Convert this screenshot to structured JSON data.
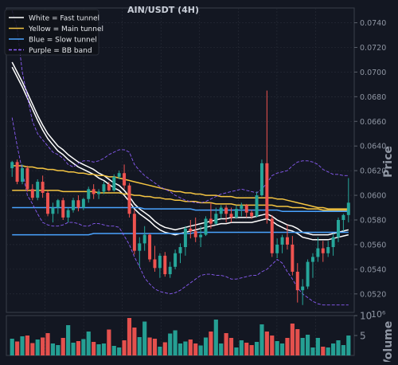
{
  "chart_data": {
    "type": "candlestick",
    "title": "AIN/USDT (4H)",
    "price_axis": {
      "label": "Price",
      "ylim": [
        0.0505,
        0.0752
      ],
      "ticks": [
        "0.0520",
        "0.0540",
        "0.0560",
        "0.0580",
        "0.0600",
        "0.0620",
        "0.0640",
        "0.0660",
        "0.0680",
        "0.0700",
        "0.0720",
        "0.0740"
      ],
      "position": "right",
      "grid": true
    },
    "volume_axis": {
      "label": "Volume",
      "unit": "10⁶",
      "ylim": [
        0,
        10
      ],
      "ticks": [
        "5",
        "10"
      ]
    },
    "legend": {
      "position": "top-left",
      "items": [
        {
          "label": "White = Fast tunnel",
          "color": "#ffffff",
          "dash": false
        },
        {
          "label": "Yellow = Main tunnel",
          "color": "#f5c542",
          "dash": false
        },
        {
          "label": "Blue = Slow tunnel",
          "color": "#4aa3ff",
          "dash": false
        },
        {
          "label": "Purple = BB band",
          "color": "#8a5cf6",
          "dash": true
        }
      ]
    },
    "colors": {
      "background": "#131722",
      "up": "#26a69a",
      "down": "#ef5350",
      "grid": "#2a2e39",
      "axis_text": "#8f96a3"
    },
    "candles": [
      [
        0.0622,
        0.0628,
        0.0615,
        0.0627,
        4.2
      ],
      [
        0.0627,
        0.0629,
        0.0609,
        0.0611,
        3.5
      ],
      [
        0.0611,
        0.0625,
        0.0609,
        0.0622,
        4.8
      ],
      [
        0.0622,
        0.0624,
        0.0603,
        0.0605,
        5.0
      ],
      [
        0.0605,
        0.0609,
        0.0596,
        0.0598,
        3.1
      ],
      [
        0.0598,
        0.0613,
        0.0596,
        0.0611,
        4.0
      ],
      [
        0.0611,
        0.0616,
        0.0598,
        0.0602,
        4.5
      ],
      [
        0.0602,
        0.0604,
        0.0583,
        0.0585,
        5.6
      ],
      [
        0.0585,
        0.0594,
        0.0578,
        0.059,
        3.0
      ],
      [
        0.059,
        0.0597,
        0.0585,
        0.0596,
        2.6
      ],
      [
        0.0596,
        0.0598,
        0.058,
        0.0582,
        4.4
      ],
      [
        0.0582,
        0.059,
        0.0578,
        0.0588,
        7.6
      ],
      [
        0.0588,
        0.0598,
        0.0586,
        0.0596,
        3.2
      ],
      [
        0.0596,
        0.06,
        0.0587,
        0.059,
        3.6
      ],
      [
        0.059,
        0.0598,
        0.0588,
        0.0597,
        4.1
      ],
      [
        0.0597,
        0.0607,
        0.0594,
        0.0605,
        6.0
      ],
      [
        0.0605,
        0.0609,
        0.0597,
        0.0601,
        3.4
      ],
      [
        0.0601,
        0.0605,
        0.0597,
        0.0603,
        2.8
      ],
      [
        0.0603,
        0.0611,
        0.0601,
        0.0609,
        3.0
      ],
      [
        0.0609,
        0.0611,
        0.0603,
        0.0604,
        6.5
      ],
      [
        0.0604,
        0.0617,
        0.0603,
        0.0615,
        2.4
      ],
      [
        0.0615,
        0.062,
        0.0613,
        0.0618,
        2.0
      ],
      [
        0.0618,
        0.0625,
        0.0605,
        0.0608,
        3.8
      ],
      [
        0.0608,
        0.061,
        0.0582,
        0.0585,
        9.4
      ],
      [
        0.0585,
        0.0588,
        0.0552,
        0.0555,
        7.0
      ],
      [
        0.0555,
        0.0566,
        0.0542,
        0.0561,
        4.6
      ],
      [
        0.0561,
        0.0575,
        0.0555,
        0.0568,
        8.5
      ],
      [
        0.0568,
        0.0569,
        0.0546,
        0.0548,
        4.5
      ],
      [
        0.0548,
        0.0559,
        0.0538,
        0.0541,
        4.2
      ],
      [
        0.0541,
        0.0553,
        0.0533,
        0.0551,
        2.2
      ],
      [
        0.0551,
        0.0554,
        0.0534,
        0.0536,
        3.3
      ],
      [
        0.0536,
        0.0546,
        0.0533,
        0.0542,
        5.5
      ],
      [
        0.0542,
        0.0556,
        0.054,
        0.0553,
        6.3
      ],
      [
        0.0553,
        0.0561,
        0.0545,
        0.0558,
        3.0
      ],
      [
        0.0558,
        0.0575,
        0.0551,
        0.0573,
        3.5
      ],
      [
        0.0573,
        0.058,
        0.0565,
        0.0571,
        4.0
      ],
      [
        0.0571,
        0.0582,
        0.0562,
        0.0566,
        3.0
      ],
      [
        0.0566,
        0.0575,
        0.0558,
        0.0568,
        2.5
      ],
      [
        0.0568,
        0.0583,
        0.0567,
        0.0581,
        4.5
      ],
      [
        0.0581,
        0.0594,
        0.0573,
        0.0577,
        6.0
      ],
      [
        0.0577,
        0.059,
        0.0576,
        0.0585,
        9.0
      ],
      [
        0.0585,
        0.0592,
        0.0581,
        0.059,
        3.0
      ],
      [
        0.059,
        0.0592,
        0.0578,
        0.0585,
        5.6
      ],
      [
        0.0585,
        0.059,
        0.0578,
        0.0582,
        4.4
      ],
      [
        0.0582,
        0.0592,
        0.0581,
        0.0589,
        2.0
      ],
      [
        0.0589,
        0.0594,
        0.0583,
        0.0592,
        3.8
      ],
      [
        0.0592,
        0.0593,
        0.0582,
        0.0586,
        3.2
      ],
      [
        0.0586,
        0.0588,
        0.0581,
        0.0583,
        2.6
      ],
      [
        0.0583,
        0.0603,
        0.0582,
        0.06,
        3.4
      ],
      [
        0.06,
        0.0629,
        0.0599,
        0.0626,
        7.8
      ],
      [
        0.0626,
        0.0685,
        0.0577,
        0.0581,
        6.0
      ],
      [
        0.0581,
        0.0584,
        0.055,
        0.0553,
        5.0
      ],
      [
        0.0553,
        0.0565,
        0.0549,
        0.056,
        3.6
      ],
      [
        0.056,
        0.0568,
        0.0553,
        0.0566,
        3.0
      ],
      [
        0.0566,
        0.0576,
        0.0556,
        0.056,
        4.4
      ],
      [
        0.056,
        0.0567,
        0.0535,
        0.0538,
        8.0
      ],
      [
        0.0538,
        0.0545,
        0.0513,
        0.0523,
        6.6
      ],
      [
        0.0523,
        0.0532,
        0.0511,
        0.0526,
        4.4
      ],
      [
        0.0526,
        0.0548,
        0.0524,
        0.0546,
        5.2
      ],
      [
        0.0546,
        0.0553,
        0.0533,
        0.055,
        2.0
      ],
      [
        0.055,
        0.0566,
        0.0546,
        0.0557,
        4.4
      ],
      [
        0.0557,
        0.0563,
        0.0546,
        0.0553,
        2.2
      ],
      [
        0.0553,
        0.0563,
        0.055,
        0.0558,
        2.0
      ],
      [
        0.0558,
        0.0569,
        0.0551,
        0.0566,
        3.0
      ],
      [
        0.0566,
        0.0582,
        0.0562,
        0.058,
        3.8
      ],
      [
        0.058,
        0.0585,
        0.0571,
        0.0584,
        2.6
      ],
      [
        0.0584,
        0.0614,
        0.0578,
        0.0594,
        5.0
      ]
    ],
    "series": [
      {
        "name": "White = Fast tunnel",
        "color": "#ffffff",
        "lines": [
          [
            0.0708,
            0.07,
            0.0692,
            0.0683,
            0.0674,
            0.0665,
            0.0657,
            0.065,
            0.0645,
            0.064,
            0.0637,
            0.0633,
            0.063,
            0.0627,
            0.0625,
            0.0623,
            0.0621,
            0.0618,
            0.0616,
            0.0613,
            0.061,
            0.0608,
            0.0604,
            0.0599,
            0.0593,
            0.0589,
            0.0586,
            0.0583,
            0.0579,
            0.0576,
            0.0574,
            0.0573,
            0.0572,
            0.0573,
            0.0574,
            0.0575,
            0.0576,
            0.0577,
            0.0578,
            0.0579,
            0.058,
            0.0581,
            0.0581,
            0.0582,
            0.0582,
            0.0582,
            0.0582,
            0.0582,
            0.0583,
            0.0584,
            0.0585,
            0.0583,
            0.058,
            0.0578,
            0.0576,
            0.0575,
            0.0573,
            0.057,
            0.0569,
            0.0568,
            0.0568,
            0.0568,
            0.0568,
            0.0569,
            0.057,
            0.0571,
            0.0572
          ],
          [
            0.0704,
            0.0696,
            0.0688,
            0.0679,
            0.067,
            0.0661,
            0.0653,
            0.0646,
            0.0641,
            0.0636,
            0.0633,
            0.0629,
            0.0626,
            0.0623,
            0.0621,
            0.0619,
            0.0617,
            0.0614,
            0.0612,
            0.0609,
            0.0606,
            0.0604,
            0.06,
            0.0595,
            0.0589,
            0.0585,
            0.0582,
            0.0579,
            0.0575,
            0.0572,
            0.057,
            0.0569,
            0.0568,
            0.0569,
            0.057,
            0.0571,
            0.0572,
            0.0573,
            0.0574,
            0.0575,
            0.0576,
            0.0577,
            0.0577,
            0.0578,
            0.0578,
            0.0578,
            0.0578,
            0.0578,
            0.0579,
            0.058,
            0.0581,
            0.0579,
            0.0576,
            0.0574,
            0.0572,
            0.0571,
            0.0569,
            0.0566,
            0.0565,
            0.0564,
            0.0564,
            0.0564,
            0.0564,
            0.0565,
            0.0566,
            0.0567,
            0.0568
          ]
        ]
      },
      {
        "name": "Yellow = Main tunnel",
        "color": "#f5c542",
        "lines": [
          [
            0.0624,
            0.0624,
            0.0624,
            0.0623,
            0.0623,
            0.0622,
            0.0622,
            0.0621,
            0.0621,
            0.062,
            0.062,
            0.0619,
            0.0619,
            0.0618,
            0.0618,
            0.0617,
            0.0617,
            0.0616,
            0.0616,
            0.0615,
            0.0615,
            0.0614,
            0.0613,
            0.0612,
            0.0611,
            0.061,
            0.0609,
            0.0608,
            0.0607,
            0.0606,
            0.0605,
            0.0604,
            0.0603,
            0.0603,
            0.0602,
            0.0602,
            0.0601,
            0.0601,
            0.06,
            0.06,
            0.06,
            0.0599,
            0.0599,
            0.0599,
            0.0598,
            0.0598,
            0.0598,
            0.0598,
            0.0598,
            0.0598,
            0.0598,
            0.0598,
            0.0597,
            0.0597,
            0.0596,
            0.0595,
            0.0594,
            0.0593,
            0.0592,
            0.0591,
            0.059,
            0.059,
            0.0589,
            0.0589,
            0.0589,
            0.0589,
            0.0589
          ],
          [
            0.0604,
            0.0604,
            0.0604,
            0.0604,
            0.0604,
            0.0604,
            0.0604,
            0.0604,
            0.0604,
            0.0604,
            0.0603,
            0.0603,
            0.0603,
            0.0603,
            0.0603,
            0.0603,
            0.0603,
            0.0602,
            0.0602,
            0.0602,
            0.0602,
            0.0602,
            0.0601,
            0.0601,
            0.06,
            0.06,
            0.0599,
            0.0599,
            0.0598,
            0.0598,
            0.0597,
            0.0597,
            0.0596,
            0.0596,
            0.0595,
            0.0595,
            0.0595,
            0.0594,
            0.0594,
            0.0594,
            0.0593,
            0.0593,
            0.0593,
            0.0593,
            0.0592,
            0.0592,
            0.0592,
            0.0592,
            0.0592,
            0.0592,
            0.0592,
            0.0592,
            0.0591,
            0.0591,
            0.0591,
            0.059,
            0.059,
            0.059,
            0.0589,
            0.0589,
            0.0589,
            0.0588,
            0.0588,
            0.0588,
            0.0588,
            0.0588,
            0.0588
          ]
        ]
      },
      {
        "name": "Blue = Slow tunnel",
        "color": "#4aa3ff",
        "lines": [
          [
            0.059,
            0.059,
            0.059,
            0.059,
            0.059,
            0.059,
            0.059,
            0.059,
            0.059,
            0.059,
            0.059,
            0.059,
            0.059,
            0.059,
            0.059,
            0.059,
            0.059,
            0.059,
            0.059,
            0.059,
            0.059,
            0.059,
            0.059,
            0.059,
            0.059,
            0.059,
            0.0589,
            0.0589,
            0.0589,
            0.0589,
            0.0589,
            0.0589,
            0.0589,
            0.0589,
            0.0589,
            0.0589,
            0.0588,
            0.0588,
            0.0588,
            0.0588,
            0.0588,
            0.0588,
            0.0588,
            0.0588,
            0.0588,
            0.0588,
            0.0588,
            0.0588,
            0.0588,
            0.0588,
            0.0588,
            0.0588,
            0.0588,
            0.0587,
            0.0587,
            0.0587,
            0.0587,
            0.0587,
            0.0587,
            0.0587,
            0.0587,
            0.0587,
            0.0587,
            0.0587,
            0.0587,
            0.0587,
            0.0587
          ],
          [
            0.0568,
            0.0568,
            0.0568,
            0.0568,
            0.0568,
            0.0568,
            0.0568,
            0.0568,
            0.0568,
            0.0568,
            0.0568,
            0.0568,
            0.0568,
            0.0568,
            0.0568,
            0.0568,
            0.0569,
            0.0569,
            0.0569,
            0.0569,
            0.0569,
            0.0569,
            0.0569,
            0.0569,
            0.0569,
            0.0569,
            0.0569,
            0.0569,
            0.0569,
            0.0569,
            0.0569,
            0.0569,
            0.0569,
            0.0569,
            0.0569,
            0.0569,
            0.057,
            0.057,
            0.057,
            0.057,
            0.057,
            0.057,
            0.057,
            0.057,
            0.057,
            0.057,
            0.057,
            0.057,
            0.057,
            0.057,
            0.057,
            0.057,
            0.057,
            0.057,
            0.057,
            0.057,
            0.057,
            0.057,
            0.057,
            0.057,
            0.057,
            0.057,
            0.057,
            0.057,
            0.057,
            0.057,
            0.057
          ]
        ]
      },
      {
        "name": "Purple = BB band",
        "color": "#8a5cf6",
        "dash": true,
        "lines": [
          [
            0.075,
            0.0735,
            0.07,
            0.068,
            0.066,
            0.065,
            0.0645,
            0.064,
            0.0635,
            0.0633,
            0.063,
            0.0625,
            0.0623,
            0.0626,
            0.0628,
            0.0628,
            0.0627,
            0.0628,
            0.063,
            0.0633,
            0.0635,
            0.0637,
            0.0637,
            0.0635,
            0.0625,
            0.062,
            0.0616,
            0.0613,
            0.061,
            0.0607,
            0.0605,
            0.0603,
            0.06,
            0.0598,
            0.0596,
            0.0595,
            0.0594,
            0.0594,
            0.0595,
            0.0597,
            0.0599,
            0.0601,
            0.0602,
            0.0603,
            0.0604,
            0.0605,
            0.0604,
            0.0603,
            0.0602,
            0.0605,
            0.061,
            0.0616,
            0.0618,
            0.0619,
            0.062,
            0.0624,
            0.0627,
            0.0628,
            0.0628,
            0.0627,
            0.0625,
            0.0621,
            0.0619,
            0.0617,
            0.0617,
            0.0616,
            0.0616
          ],
          [
            0.0663,
            0.064,
            0.062,
            0.06,
            0.0593,
            0.0585,
            0.0578,
            0.0576,
            0.0575,
            0.0575,
            0.0576,
            0.0578,
            0.0578,
            0.0577,
            0.0575,
            0.0575,
            0.0577,
            0.0577,
            0.0576,
            0.0575,
            0.0575,
            0.0574,
            0.0567,
            0.056,
            0.055,
            0.0542,
            0.0533,
            0.0528,
            0.0524,
            0.0522,
            0.0521,
            0.052,
            0.0521,
            0.0523,
            0.0526,
            0.0529,
            0.0532,
            0.0535,
            0.0536,
            0.0536,
            0.0535,
            0.0535,
            0.0534,
            0.0532,
            0.0532,
            0.0533,
            0.0534,
            0.0535,
            0.0535,
            0.0538,
            0.054,
            0.0544,
            0.0548,
            0.0545,
            0.0538,
            0.0532,
            0.0525,
            0.052,
            0.0517,
            0.0514,
            0.0512,
            0.0511,
            0.0511,
            0.0511,
            0.0511,
            0.0511,
            0.0511
          ]
        ]
      }
    ]
  }
}
